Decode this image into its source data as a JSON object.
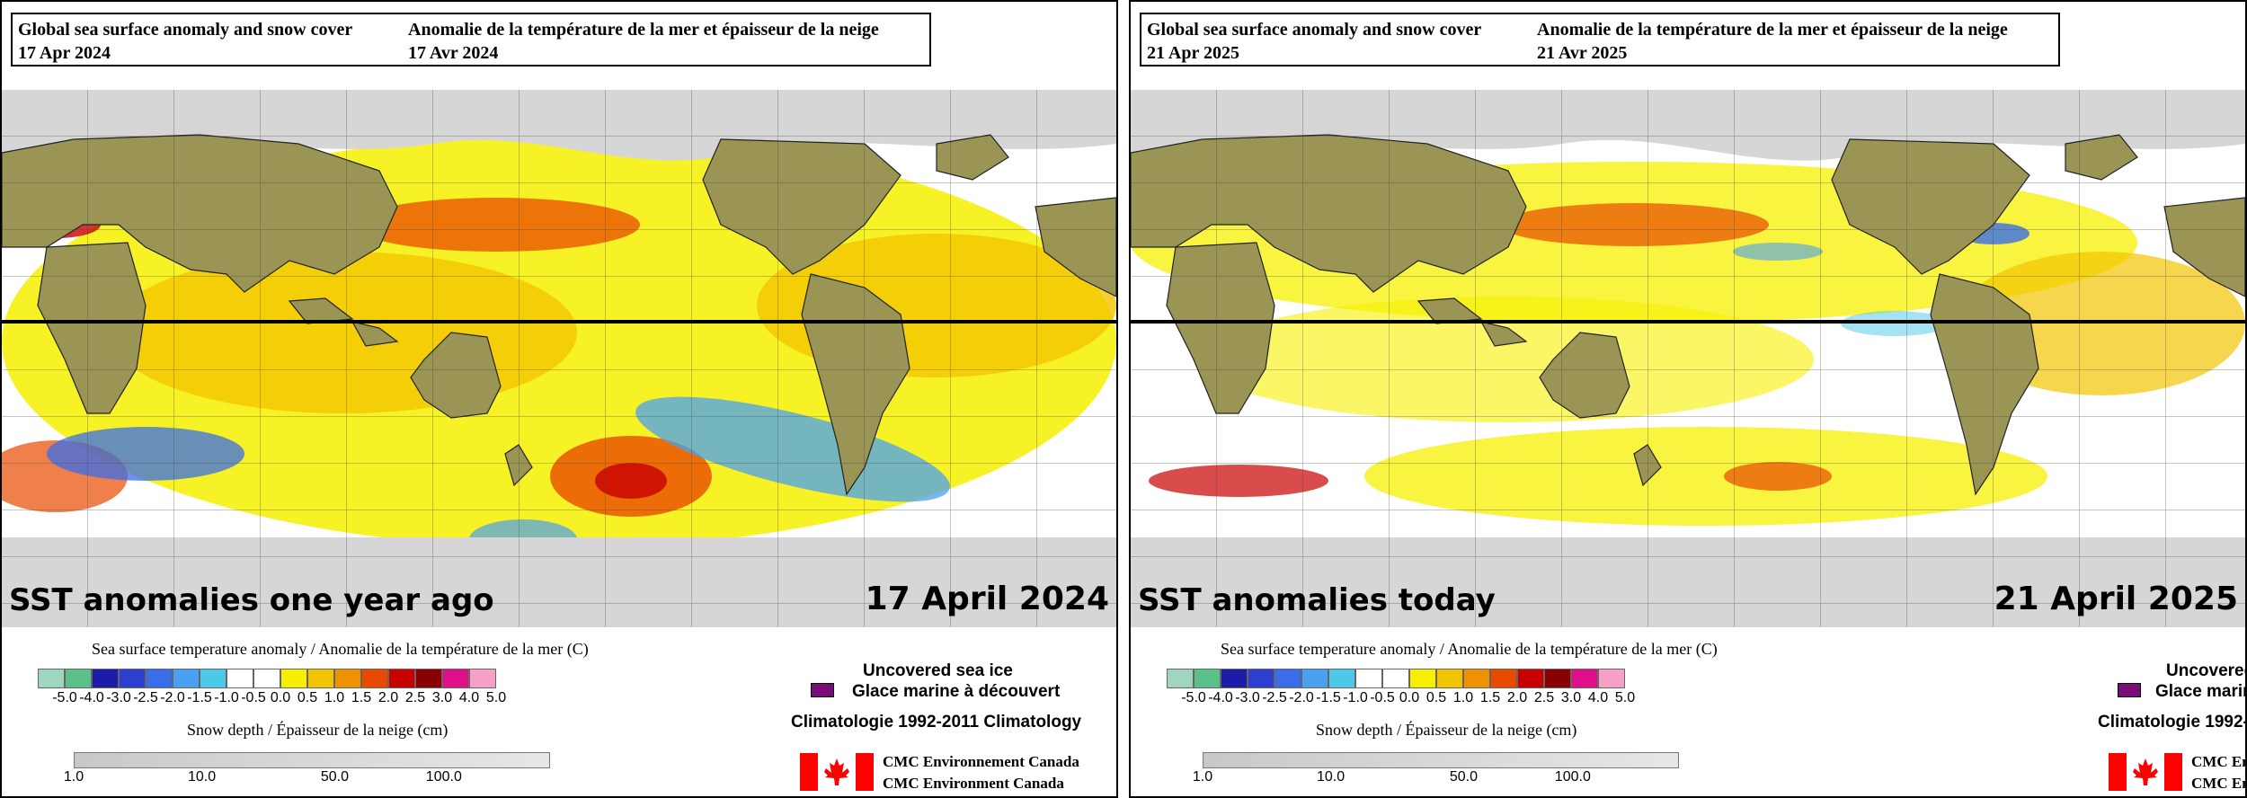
{
  "panels": [
    {
      "title_en": "Global sea surface anomaly and snow cover",
      "title_fr": "Anomalie de la température de la mer et épaisseur de la neige",
      "date_en": "17 Apr 2024",
      "date_fr": "17 Avr 2024",
      "caption": "SST anomalies one year ago",
      "big_date": "17 April 2024",
      "warm_pattern": "2024"
    },
    {
      "title_en": "Global sea surface anomaly and snow cover",
      "title_fr": "Anomalie de la température de la mer et épaisseur de la neige",
      "date_en": "21 Apr 2025",
      "date_fr": "21 Avr 2025",
      "caption": "SST anomalies today",
      "big_date": "21 April 2025",
      "warm_pattern": "2025"
    }
  ],
  "legend": {
    "sst_title": "Sea surface temperature anomaly / Anomalie de la température de la mer (C)",
    "sst_colors": [
      "#9fd6bf",
      "#5cc08a",
      "#1c1ca8",
      "#2e3fd0",
      "#3a6ee8",
      "#4aa0f0",
      "#4cc8e8",
      "#ffffff",
      "#ffffff",
      "#f6f000",
      "#f2c400",
      "#ef9200",
      "#e84a00",
      "#c80000",
      "#8a0000",
      "#e0108a",
      "#f6a0c8"
    ],
    "sst_ticks": [
      "-5.0",
      "-4.0",
      "-3.0",
      "-2.5",
      "-2.0",
      "-1.5",
      "-1.0",
      "-0.5",
      "0.0",
      "0.5",
      "1.0",
      "1.5",
      "2.0",
      "2.5",
      "3.0",
      "4.0",
      "5.0"
    ],
    "snow_title": "Snow depth / Épaisseur de la neige (cm)",
    "snow_ticks": [
      "1.0",
      "10.0",
      "50.0",
      "100.0"
    ],
    "ice_en": "Uncovered sea ice",
    "ice_fr": "Glace marine à découvert",
    "ice_color": "#7b0a7b",
    "climatology": "Climatologie 1992-2011 Climatology",
    "cmc_line1": "CMC Environnement Canada",
    "cmc_line2": "CMC Environment Canada"
  },
  "colors": {
    "land": "#9a9455",
    "sea_ice_snow": "#d6d6d6",
    "equator": "#000000",
    "flag_red": "#ff0000"
  }
}
